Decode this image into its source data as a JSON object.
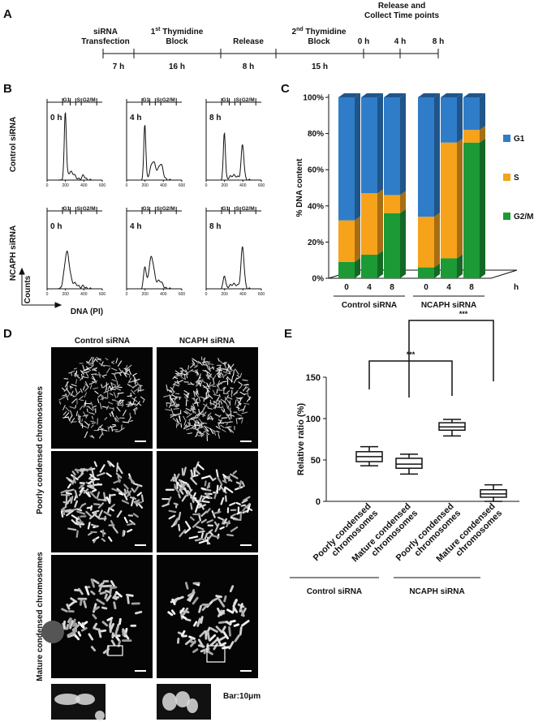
{
  "panel_labels": [
    "A",
    "B",
    "C",
    "D",
    "E"
  ],
  "timeline": {
    "header": [
      "Release and",
      "Collect Time points"
    ],
    "transfection": [
      "siRNA",
      "Transfection"
    ],
    "block1": {
      "num": "1",
      "sup": "st",
      "rest": " Thymidine",
      "line2": "Block"
    },
    "release": "Release",
    "block2": {
      "num": "2",
      "sup": "nd",
      "rest": " Thymidine",
      "line2": "Block"
    },
    "durations": [
      "7 h",
      "16 h",
      "8 h",
      "15 h"
    ],
    "time_points": [
      "0 h",
      "4 h",
      "8 h"
    ]
  },
  "flow": {
    "rows": [
      "Control siRNA",
      "NCAPH siRNA"
    ],
    "times": [
      "0 h",
      "4 h",
      "8 h"
    ],
    "gates": [
      "G1",
      "S",
      "G2/M"
    ],
    "xticks": [
      0,
      200,
      400,
      600
    ],
    "y_label": "Counts",
    "x_label": "DNA (PI)"
  },
  "chart_data": [
    {
      "type": "bar",
      "stacked": true,
      "y_label": "% DNA content",
      "categories": [
        "0",
        "4",
        "8",
        "0",
        "4",
        "8"
      ],
      "x_unit": "h",
      "groups": [
        "Control siRNA",
        "NCAPH siRNA"
      ],
      "series": [
        {
          "name": "G2/M",
          "color": "#1c9a35",
          "values": [
            9,
            13,
            36,
            6,
            11,
            75
          ]
        },
        {
          "name": "S",
          "color": "#f6a21b",
          "values": [
            23,
            34,
            10,
            28,
            64,
            7
          ]
        },
        {
          "name": "G1",
          "color": "#2f7dc9",
          "values": [
            68,
            53,
            54,
            66,
            25,
            18
          ]
        }
      ],
      "ylim": [
        0,
        100
      ],
      "yticks": [
        {
          "value": 0,
          "label": "0%"
        },
        {
          "value": 20,
          "label": "20%"
        },
        {
          "value": 40,
          "label": "40%"
        },
        {
          "value": 60,
          "label": "60%"
        },
        {
          "value": 80,
          "label": "80%"
        },
        {
          "value": 100,
          "label": "100%"
        }
      ]
    },
    {
      "type": "box",
      "y_label": "Relative ratio (%)",
      "categories": [
        [
          "Poorly condensed",
          "chromosomes"
        ],
        [
          "Mature condensed",
          "chromosomes"
        ],
        [
          "Poorly condensed",
          "chromosomes"
        ],
        [
          "Mature condensed",
          "chromosomes"
        ]
      ],
      "groups": [
        "Control siRNA",
        "NCAPH siRNA"
      ],
      "min": [
        43,
        33,
        79,
        0
      ],
      "q1": [
        48,
        40,
        86,
        5
      ],
      "median": [
        54,
        45,
        90,
        9
      ],
      "q3": [
        60,
        52,
        95,
        14
      ],
      "max": [
        66,
        57,
        99,
        20
      ],
      "ylim": [
        0,
        150
      ],
      "yticks": [
        0,
        50,
        100,
        150
      ],
      "annotations": [
        "***",
        "***"
      ]
    }
  ],
  "microscopy": {
    "columns": [
      "Control siRNA",
      "NCAPH siRNA"
    ],
    "rows": [
      "Poorly condensed chromosomes",
      "Mature condensed chromosomes"
    ],
    "scale_note": "Bar:10μm"
  }
}
